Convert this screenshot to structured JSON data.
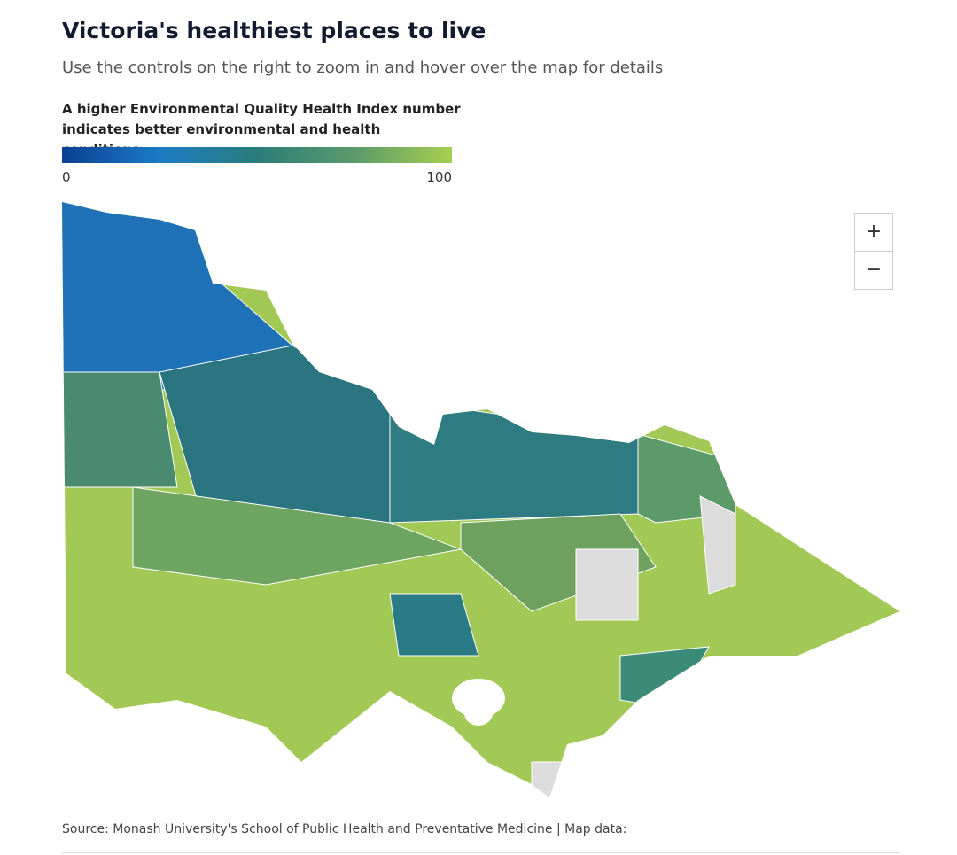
{
  "header": {
    "title": "Victoria's healthiest places to live",
    "subtitle": "Use the controls on the right to zoom in and hover over the map for details"
  },
  "legend": {
    "title": "A higher Environmental Quality Health Index number indicates better environmental and health conditions",
    "min": 0,
    "max": 100,
    "ticks": [
      0,
      100
    ],
    "colors": [
      "#0b3f93",
      "#1b7bc4",
      "#2a7d7b",
      "#5c9a6a",
      "#a6cf4f"
    ]
  },
  "zoom": {
    "in": "+",
    "out": "−"
  },
  "footer": {
    "source": "Source: Monash University's School of Public Health and Preventative Medicine | Map data:"
  }
}
